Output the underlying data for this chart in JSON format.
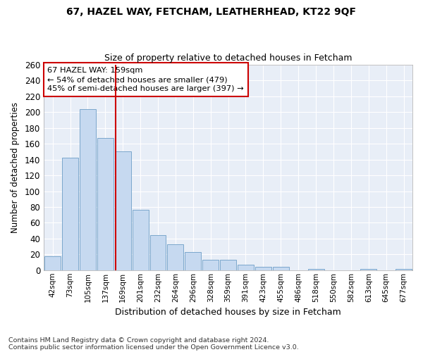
{
  "title1": "67, HAZEL WAY, FETCHAM, LEATHERHEAD, KT22 9QF",
  "title2": "Size of property relative to detached houses in Fetcham",
  "xlabel": "Distribution of detached houses by size in Fetcham",
  "ylabel": "Number of detached properties",
  "footnote1": "Contains HM Land Registry data © Crown copyright and database right 2024.",
  "footnote2": "Contains public sector information licensed under the Open Government Licence v3.0.",
  "annotation_line1": "67 HAZEL WAY: 159sqm",
  "annotation_line2": "← 54% of detached houses are smaller (479)",
  "annotation_line3": "45% of semi-detached houses are larger (397) →",
  "bar_labels": [
    "42sqm",
    "73sqm",
    "105sqm",
    "137sqm",
    "169sqm",
    "201sqm",
    "232sqm",
    "264sqm",
    "296sqm",
    "328sqm",
    "359sqm",
    "391sqm",
    "423sqm",
    "455sqm",
    "486sqm",
    "518sqm",
    "550sqm",
    "582sqm",
    "613sqm",
    "645sqm",
    "677sqm"
  ],
  "bar_values": [
    18,
    142,
    204,
    167,
    150,
    76,
    44,
    33,
    23,
    13,
    13,
    7,
    4,
    4,
    0,
    2,
    0,
    0,
    2,
    0,
    2
  ],
  "bar_color": "#c6d9f0",
  "bar_edge_color": "#7ba7cc",
  "vline_color": "#cc0000",
  "background_color": "#e8eef7",
  "grid_color": "#ffffff",
  "figure_bg": "#ffffff",
  "annotation_box_color": "#ffffff",
  "annotation_box_edge": "#cc0000",
  "ylim": [
    0,
    260
  ],
  "yticks": [
    0,
    20,
    40,
    60,
    80,
    100,
    120,
    140,
    160,
    180,
    200,
    220,
    240,
    260
  ]
}
